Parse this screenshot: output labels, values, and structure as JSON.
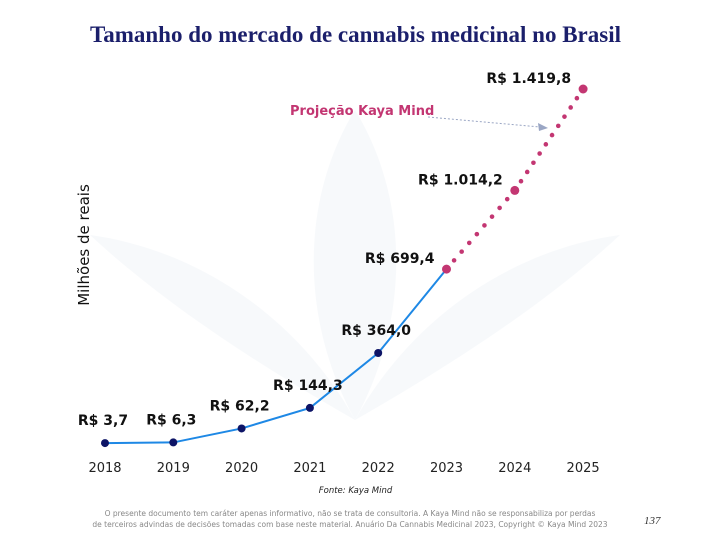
{
  "page": {
    "title": "Tamanho do mercado de cannabis medicinal no Brasil",
    "source": "Fonte: Kaya Mind",
    "disclaimer_line1": "O presente documento tem caráter apenas informativo, não se trata de consultoria. A Kaya Mind não se responsabiliza por perdas",
    "disclaimer_line2": "de terceiros advindas de decisões tomadas com base neste material. Anuário Da Cannabis Medicinal 2023, Copyright © Kaya Mind 2023",
    "page_number": "137"
  },
  "chart_data": {
    "type": "line",
    "title": "Tamanho do mercado de cannabis medicinal no Brasil",
    "xlabel": "",
    "ylabel": "Milhões de reais",
    "x": [
      "2018",
      "2019",
      "2020",
      "2021",
      "2022",
      "2023",
      "2024",
      "2025"
    ],
    "values": [
      3.7,
      6.3,
      62.2,
      144.3,
      364.0,
      699.4,
      1014.2,
      1419.8
    ],
    "data_labels": [
      "R$ 3,7",
      "R$ 6,3",
      "R$ 62,2",
      "R$ 144,3",
      "R$ 364,0",
      "R$ 699,4",
      "R$ 1.014,2",
      "R$ 1.419,8"
    ],
    "ylim": [
      0,
      1419.8
    ],
    "grid": false,
    "projection_start_index": 5,
    "annotation": "Projeção Kaya Mind",
    "colors": {
      "actual_line": "#1e88e5",
      "actual_marker": "#0d1466",
      "projection": "#c33672",
      "title": "#1b1f6b"
    }
  }
}
